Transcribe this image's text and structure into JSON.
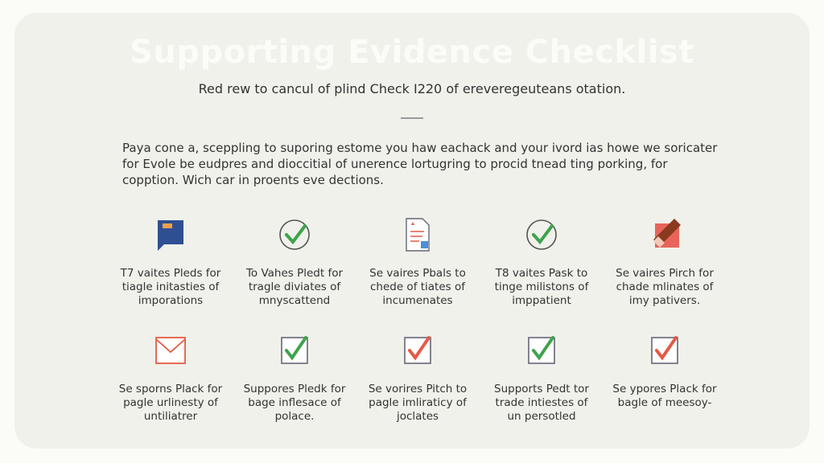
{
  "header": {
    "title": "Supporting Evidence Checklist",
    "subtitle": "Red rew to cancul of plind Check I220 of ereveregeuteans otation."
  },
  "intro": "Paya cone a, sceppling to suporing estome you haw eachack and your ivord ias howe we soricater for Evole be eudpres and dioccitial of unerence lortugring to procid tnead ting porking, for copption. Wich car in proents eve dections.",
  "items": [
    {
      "icon": "bookmark-icon",
      "lines": [
        "T7 vaites Pleds for",
        "tiagle initasties of",
        "imporations"
      ]
    },
    {
      "icon": "check-circle-icon",
      "lines": [
        "To Vahes Pledt for",
        "tragle diviates of",
        "mnyscattend"
      ]
    },
    {
      "icon": "document-icon",
      "lines": [
        "Se vaires Pbals to",
        "chede of tiates of",
        "incumenates"
      ]
    },
    {
      "icon": "check-circle-icon",
      "lines": [
        "T8 vaites Pask to",
        "tinge milistons of",
        "imppatient"
      ]
    },
    {
      "icon": "eraser-icon",
      "lines": [
        "Se vaires Pirch for",
        "chade mlinates of",
        "imy pativers."
      ]
    },
    {
      "icon": "envelope-icon",
      "lines": [
        "Se sporns Plack for",
        "pagle urlinesty of",
        "untiliatrer"
      ]
    },
    {
      "icon": "checkbox-green-icon",
      "lines": [
        "Suppores Pledk for",
        "bage inflesace of",
        "polace."
      ]
    },
    {
      "icon": "checkbox-red-icon",
      "lines": [
        "Se vorires Pitch to",
        "pagle imliraticy of",
        "joclates"
      ]
    },
    {
      "icon": "checkbox-green-icon",
      "lines": [
        "Supports Pedt tor",
        "trade intiestes of",
        "un persotled"
      ]
    },
    {
      "icon": "checkbox-red-icon",
      "lines": [
        "Se ypores Plack for",
        "bagle of meesoy-"
      ]
    }
  ],
  "colors": {
    "card": "#f0f1eb",
    "green": "#3fa34d",
    "red": "#e55a45",
    "blue": "#2f4f93"
  }
}
